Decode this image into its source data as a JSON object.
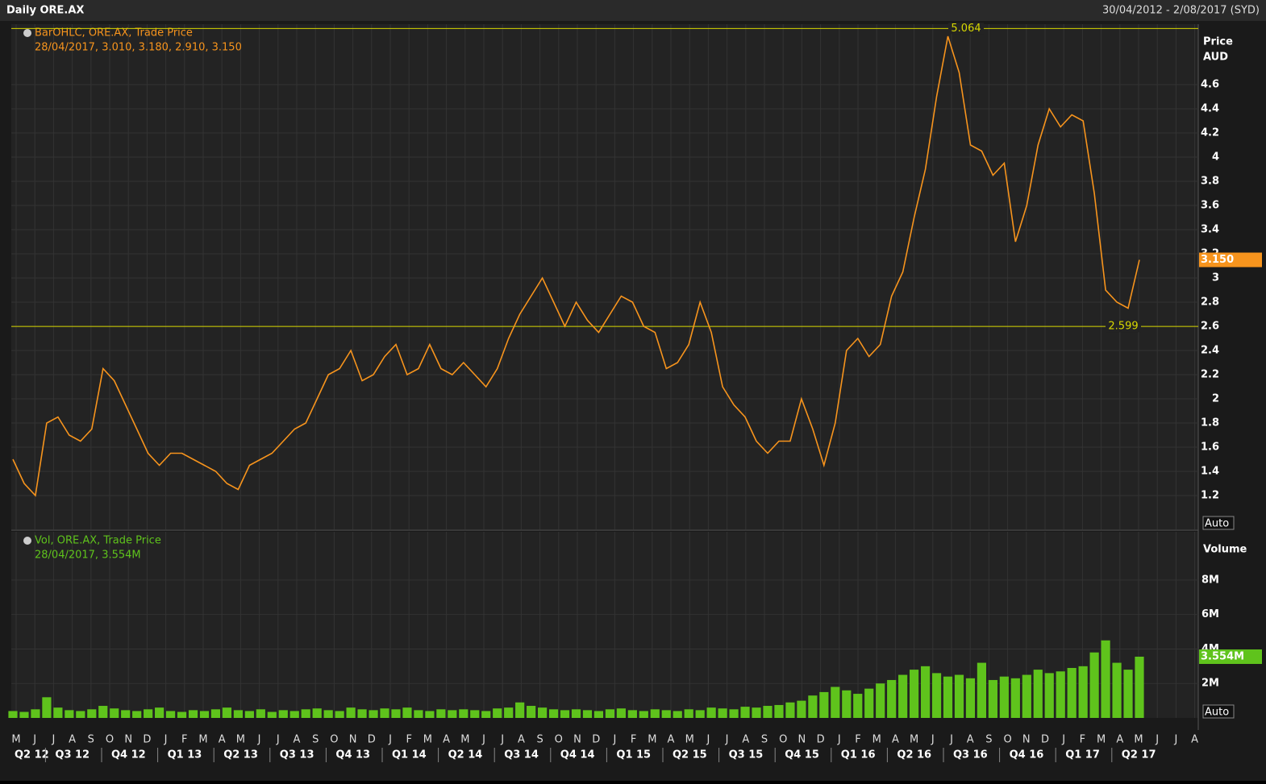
{
  "header": {
    "title": "Daily ORE.AX",
    "range": "30/04/2012 - 2/08/2017 (SYD)"
  },
  "x_axis": {
    "months": [
      "M",
      "J",
      "J",
      "A",
      "S",
      "O",
      "N",
      "D",
      "J",
      "F",
      "M",
      "A",
      "M",
      "J",
      "J",
      "A",
      "S",
      "O",
      "N",
      "D",
      "J",
      "F",
      "M",
      "A",
      "M",
      "J",
      "J",
      "A",
      "S",
      "O",
      "N",
      "D",
      "J",
      "F",
      "M",
      "A",
      "M",
      "J",
      "J",
      "A",
      "S",
      "O",
      "N",
      "D",
      "J",
      "F",
      "M",
      "A",
      "M",
      "J",
      "J",
      "A",
      "S",
      "O",
      "N",
      "D",
      "J",
      "F",
      "M",
      "A",
      "M",
      "J",
      "J",
      "A"
    ],
    "quarters": [
      "Q2 12",
      "Q3 12",
      "Q4 12",
      "Q1 13",
      "Q2 13",
      "Q3 13",
      "Q4 13",
      "Q1 14",
      "Q2 14",
      "Q3 14",
      "Q4 14",
      "Q1 15",
      "Q2 15",
      "Q3 15",
      "Q4 15",
      "Q1 16",
      "Q2 16",
      "Q3 16",
      "Q4 16",
      "Q1 17",
      "Q2 17"
    ]
  },
  "chart_data": [
    {
      "type": "line",
      "legend_title": "BarOHLC, ORE.AX, Trade Price",
      "legend_detail": "28/04/2017, 3.010, 3.180, 2.910, 3.150",
      "y_label": "Price",
      "y_unit": "AUD",
      "scale_button": "Auto",
      "last_value_label": "3.150",
      "color": "#f7941d",
      "reference_lines": [
        5.064,
        2.599
      ],
      "reference_color": "#d8d800",
      "ylim": [
        0.92,
        5.1
      ],
      "yticks": [
        1.2,
        1.4,
        1.6,
        1.8,
        2,
        2.2,
        2.4,
        2.6,
        2.8,
        3,
        3.2,
        3.4,
        3.6,
        3.8,
        4,
        4.2,
        4.4,
        4.6
      ],
      "grid": true,
      "values": [
        1.5,
        1.3,
        1.2,
        1.8,
        1.85,
        1.7,
        1.65,
        1.75,
        2.25,
        2.15,
        1.95,
        1.75,
        1.55,
        1.45,
        1.55,
        1.55,
        1.5,
        1.45,
        1.4,
        1.3,
        1.25,
        1.45,
        1.5,
        1.55,
        1.65,
        1.75,
        1.8,
        2.0,
        2.2,
        2.25,
        2.4,
        2.15,
        2.2,
        2.35,
        2.45,
        2.2,
        2.25,
        2.45,
        2.25,
        2.2,
        2.3,
        2.2,
        2.1,
        2.25,
        2.5,
        2.7,
        2.85,
        3.0,
        2.8,
        2.6,
        2.8,
        2.65,
        2.55,
        2.7,
        2.85,
        2.8,
        2.6,
        2.55,
        2.25,
        2.3,
        2.45,
        2.8,
        2.55,
        2.1,
        1.95,
        1.85,
        1.65,
        1.55,
        1.65,
        1.65,
        2.0,
        1.75,
        1.45,
        1.8,
        2.4,
        2.5,
        2.35,
        2.45,
        2.85,
        3.05,
        3.5,
        3.9,
        4.5,
        5.0,
        4.7,
        4.1,
        4.05,
        3.85,
        3.95,
        3.3,
        3.6,
        4.1,
        4.4,
        4.25,
        4.35,
        4.3,
        3.7,
        2.9,
        2.8,
        2.75,
        3.15
      ]
    },
    {
      "type": "bar",
      "legend_title": "Vol, ORE.AX, Trade Price",
      "legend_detail": "28/04/2017, 3.554M",
      "y_label": "Volume",
      "scale_button": "Auto",
      "last_value_label": "3.554M",
      "color": "#5fc31c",
      "ylim": [
        0,
        10800000
      ],
      "yticks": [
        {
          "value": 2000000,
          "label": "2M"
        },
        {
          "value": 4000000,
          "label": "4M"
        },
        {
          "value": 6000000,
          "label": "6M"
        },
        {
          "value": 8000000,
          "label": "8M"
        }
      ],
      "grid": true,
      "values": [
        400000,
        350000,
        500000,
        1200000,
        600000,
        450000,
        400000,
        500000,
        700000,
        550000,
        450000,
        400000,
        500000,
        600000,
        400000,
        350000,
        450000,
        400000,
        500000,
        600000,
        450000,
        400000,
        500000,
        350000,
        450000,
        400000,
        500000,
        550000,
        450000,
        400000,
        600000,
        500000,
        450000,
        550000,
        500000,
        600000,
        450000,
        400000,
        500000,
        450000,
        500000,
        450000,
        400000,
        550000,
        600000,
        900000,
        700000,
        600000,
        500000,
        450000,
        500000,
        450000,
        400000,
        500000,
        550000,
        450000,
        400000,
        500000,
        450000,
        400000,
        500000,
        450000,
        600000,
        550000,
        500000,
        650000,
        600000,
        700000,
        750000,
        900000,
        1000000,
        1300000,
        1500000,
        1800000,
        1600000,
        1400000,
        1700000,
        2000000,
        2200000,
        2500000,
        2800000,
        3000000,
        2600000,
        2400000,
        2500000,
        2300000,
        3200000,
        2200000,
        2400000,
        2300000,
        2500000,
        2800000,
        2600000,
        2700000,
        2900000,
        3000000,
        3800000,
        4500000,
        3200000,
        2800000,
        3554000
      ]
    }
  ]
}
